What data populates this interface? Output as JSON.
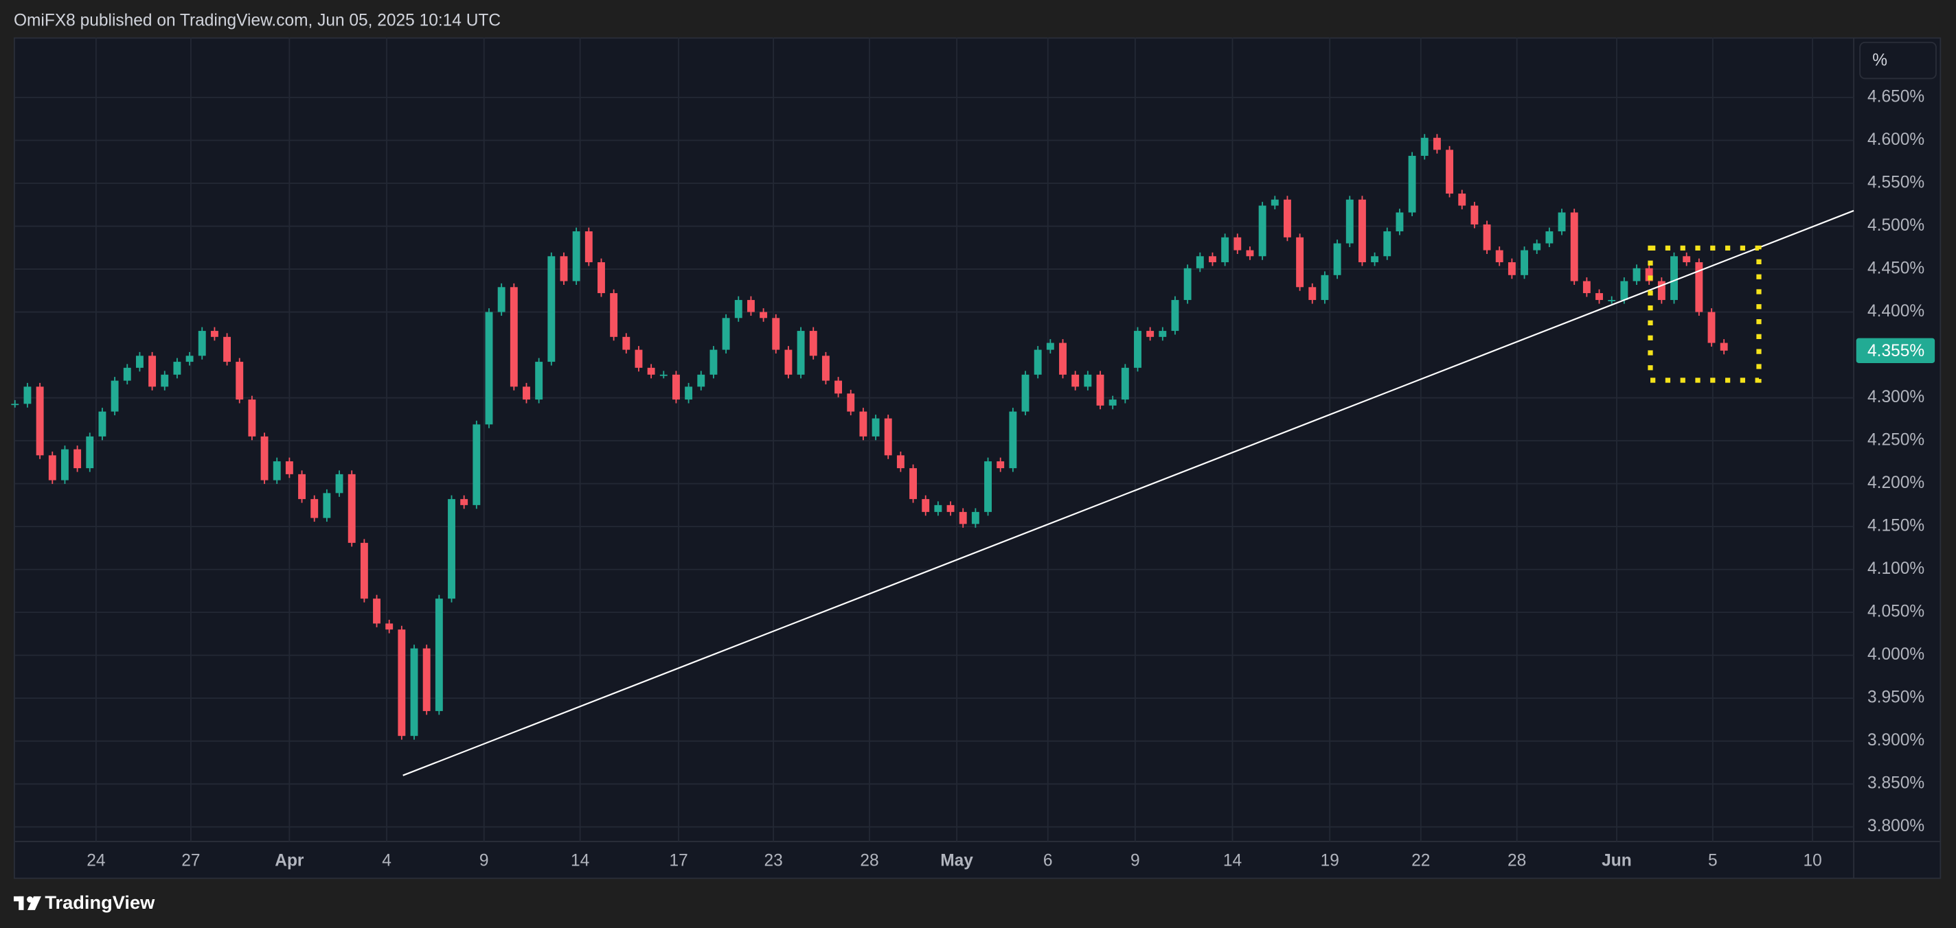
{
  "header": {
    "text": "OmiFX8 published on TradingView.com, Jun 05, 2025 10:14 UTC"
  },
  "footer": {
    "brand": "TradingView"
  },
  "chart_data": {
    "type": "candlestick",
    "scale_button": "%",
    "up_color": "#22ab94",
    "down_color": "#f7525f",
    "grid": true,
    "xlim": [
      0,
      147.4
    ],
    "ylim": [
      3.783,
      4.72
    ],
    "yticks": [
      {
        "value": 4.65,
        "label": "4.650%"
      },
      {
        "value": 4.6,
        "label": "4.600%"
      },
      {
        "value": 4.55,
        "label": "4.550%"
      },
      {
        "value": 4.5,
        "label": "4.500%"
      },
      {
        "value": 4.45,
        "label": "4.450%"
      },
      {
        "value": 4.4,
        "label": "4.400%"
      },
      {
        "value": 4.3,
        "label": "4.300%"
      },
      {
        "value": 4.25,
        "label": "4.250%"
      },
      {
        "value": 4.2,
        "label": "4.200%"
      },
      {
        "value": 4.15,
        "label": "4.150%"
      },
      {
        "value": 4.1,
        "label": "4.100%"
      },
      {
        "value": 4.05,
        "label": "4.050%"
      },
      {
        "value": 4.0,
        "label": "4.000%"
      },
      {
        "value": 3.95,
        "label": "3.950%"
      },
      {
        "value": 3.9,
        "label": "3.900%"
      },
      {
        "value": 3.85,
        "label": "3.850%"
      },
      {
        "value": 3.8,
        "label": "3.800%"
      }
    ],
    "xticks": [
      {
        "value": 6.5,
        "label": "24"
      },
      {
        "value": 14.1,
        "label": "27"
      },
      {
        "value": 22,
        "label": "Apr"
      },
      {
        "value": 29.8,
        "label": "4"
      },
      {
        "value": 37.6,
        "label": "9"
      },
      {
        "value": 45.3,
        "label": "14"
      },
      {
        "value": 53.2,
        "label": "17"
      },
      {
        "value": 60.8,
        "label": "23"
      },
      {
        "value": 68.5,
        "label": "28"
      },
      {
        "value": 75.5,
        "label": "May"
      },
      {
        "value": 82.8,
        "label": "6"
      },
      {
        "value": 89.8,
        "label": "9"
      },
      {
        "value": 97.6,
        "label": "14"
      },
      {
        "value": 105.4,
        "label": "19"
      },
      {
        "value": 112.7,
        "label": "22"
      },
      {
        "value": 120.4,
        "label": "28"
      },
      {
        "value": 128.4,
        "label": "Jun"
      },
      {
        "value": 136.1,
        "label": "5"
      },
      {
        "value": 144.1,
        "label": "10"
      }
    ],
    "last_label": {
      "value": 4.355,
      "label": "4.355%"
    },
    "values": [
      4.293,
      4.313,
      4.233,
      4.204,
      4.24,
      4.218,
      4.255,
      4.284,
      4.32,
      4.335,
      4.349,
      4.313,
      4.327,
      4.342,
      4.349,
      4.378,
      4.371,
      4.342,
      4.298,
      4.255,
      4.204,
      4.226,
      4.211,
      4.182,
      4.16,
      4.189,
      4.211,
      4.131,
      4.066,
      4.037,
      4.03,
      3.906,
      4.008,
      3.935,
      4.066,
      4.182,
      4.175,
      4.269,
      4.4,
      4.429,
      4.313,
      4.298,
      4.342,
      4.465,
      4.436,
      4.494,
      4.458,
      4.422,
      4.371,
      4.356,
      4.335,
      4.327,
      4.327,
      4.298,
      4.313,
      4.327,
      4.356,
      4.393,
      4.414,
      4.4,
      4.393,
      4.356,
      4.327,
      4.378,
      4.349,
      4.32,
      4.305,
      4.284,
      4.255,
      4.276,
      4.233,
      4.218,
      4.182,
      4.167,
      4.175,
      4.167,
      4.153,
      4.167,
      4.226,
      4.218,
      4.284,
      4.327,
      4.356,
      4.364,
      4.327,
      4.313,
      4.327,
      4.291,
      4.298,
      4.335,
      4.378,
      4.371,
      4.378,
      4.414,
      4.451,
      4.465,
      4.458,
      4.487,
      4.472,
      4.465,
      4.524,
      4.531,
      4.487,
      4.429,
      4.414,
      4.443,
      4.48,
      4.531,
      4.458,
      4.465,
      4.494,
      4.516,
      4.582,
      4.603,
      4.589,
      4.538,
      4.524,
      4.502,
      4.472,
      4.458,
      4.443,
      4.472,
      4.48,
      4.494,
      4.516,
      4.436,
      4.422,
      4.414,
      4.414,
      4.436,
      4.451,
      4.436,
      4.414,
      4.465,
      4.458,
      4.4,
      4.364,
      4.355
    ]
  }
}
